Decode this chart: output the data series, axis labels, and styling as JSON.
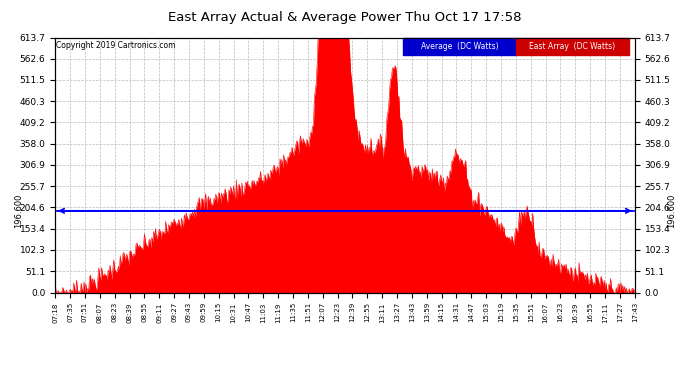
{
  "title": "East Array Actual & Average Power Thu Oct 17 17:58",
  "copyright": "Copyright 2019 Cartronics.com",
  "legend_labels": [
    "Average  (DC Watts)",
    "East Array  (DC Watts)"
  ],
  "legend_bg_colors": [
    "#0000cc",
    "#cc0000"
  ],
  "avg_value": 196.6,
  "avg_label": "196.600",
  "y_ticks": [
    0.0,
    51.1,
    102.3,
    153.4,
    204.6,
    255.7,
    306.9,
    358.0,
    409.2,
    460.3,
    511.5,
    562.6,
    613.7
  ],
  "ylim": [
    0,
    613.7
  ],
  "background_color": "#ffffff",
  "plot_bg_color": "#ffffff",
  "grid_color": "#bbbbbb",
  "fill_color": "#ff0000",
  "avg_line_color": "#0000ff",
  "x_tick_labels": [
    "07:18",
    "07:35",
    "07:51",
    "08:07",
    "08:23",
    "08:39",
    "08:55",
    "09:11",
    "09:27",
    "09:43",
    "09:59",
    "10:15",
    "10:31",
    "10:47",
    "11:03",
    "11:19",
    "11:35",
    "11:51",
    "12:07",
    "12:23",
    "12:39",
    "12:55",
    "13:11",
    "13:27",
    "13:43",
    "13:59",
    "14:15",
    "14:31",
    "14:47",
    "15:03",
    "15:19",
    "15:35",
    "15:51",
    "16:07",
    "16:23",
    "16:39",
    "16:55",
    "17:11",
    "17:27",
    "17:43"
  ]
}
